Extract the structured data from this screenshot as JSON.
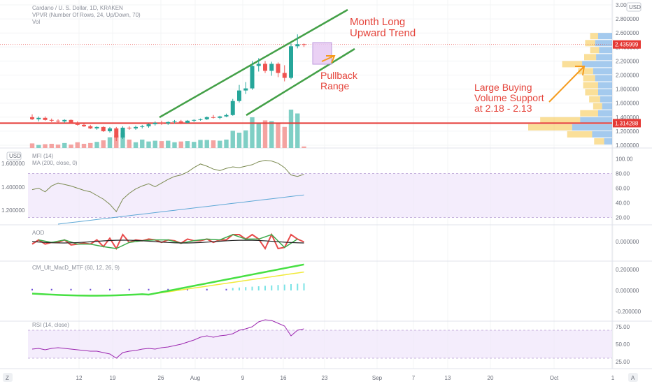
{
  "header": {
    "symbol": "Cardano / U. S. Dollar, 1D, KRAKEN",
    "vpvr": "VPVR (Number Of Rows, 24, Up/Down, 70)",
    "vol": "Vol",
    "currency": "USD"
  },
  "colors": {
    "up": "#26a69a",
    "down": "#ef5350",
    "trend": "#43a047",
    "support": "#e53935",
    "annotation": "#e5443b",
    "mfi": "#7b8a50",
    "ma": "#5ea8d6",
    "band": "#efe6fb",
    "macd": "#47e043",
    "signal": "#f1ea3a",
    "rsi": "#9c27b0"
  },
  "annotations": {
    "trend_l1": "Month Long",
    "trend_l2": "Upward Trend",
    "pullback_l1": "Pullback",
    "pullback_l2": "Range",
    "volume_l1": "Large Buying",
    "volume_l2": "Volume Support",
    "volume_l3": "at 2.18 - 2.13"
  },
  "price_labels": {
    "current": "2.435999",
    "support": "1.314288"
  },
  "x_axis": {
    "labels": [
      "12",
      "19",
      "26",
      "Aug",
      "9",
      "16",
      "23",
      "Sep",
      "7",
      "13",
      "20",
      "Oct",
      "1"
    ],
    "left_badge": "Z",
    "right_badge": "A"
  },
  "panes": {
    "mfi": {
      "title": "MFI (14)",
      "ma": "MA (200, close, 0)",
      "ticks": [
        "100.00",
        "80.00",
        "60.00",
        "40.00",
        "20.00"
      ],
      "left_ticks": [
        "1.600000",
        "1.400000",
        "1.200000"
      ],
      "left_currency": "USD"
    },
    "aod": {
      "title": "AOD",
      "ticks": [
        "0.000000"
      ]
    },
    "macd": {
      "title": "CM_Ult_MacD_MTF (60, 12, 26, 9)",
      "ticks": [
        "0.200000",
        "0.000000",
        "-0.200000"
      ]
    },
    "rsi": {
      "title": "RSI (14, close)",
      "ticks": [
        "75.00",
        "50.00",
        "25.00"
      ]
    }
  },
  "chart_data": {
    "type": "candlestick",
    "y_ticks": [
      "3.000000",
      "2.800000",
      "2.600000",
      "2.400000",
      "2.200000",
      "2.000000",
      "1.800000",
      "1.600000",
      "1.400000",
      "1.200000",
      "1.000000"
    ],
    "ylim": [
      1.0,
      3.0
    ],
    "support_level": 1.314288,
    "current_price": 2.435999,
    "candles": [
      {
        "o": 1.4,
        "h": 1.44,
        "l": 1.36,
        "c": 1.37
      },
      {
        "o": 1.37,
        "h": 1.41,
        "l": 1.34,
        "c": 1.39
      },
      {
        "o": 1.39,
        "h": 1.41,
        "l": 1.35,
        "c": 1.36
      },
      {
        "o": 1.36,
        "h": 1.38,
        "l": 1.33,
        "c": 1.35
      },
      {
        "o": 1.35,
        "h": 1.37,
        "l": 1.32,
        "c": 1.34
      },
      {
        "o": 1.34,
        "h": 1.37,
        "l": 1.32,
        "c": 1.36
      },
      {
        "o": 1.36,
        "h": 1.37,
        "l": 1.31,
        "c": 1.32
      },
      {
        "o": 1.32,
        "h": 1.34,
        "l": 1.28,
        "c": 1.29
      },
      {
        "o": 1.29,
        "h": 1.31,
        "l": 1.26,
        "c": 1.27
      },
      {
        "o": 1.27,
        "h": 1.29,
        "l": 1.23,
        "c": 1.24
      },
      {
        "o": 1.24,
        "h": 1.27,
        "l": 1.22,
        "c": 1.26
      },
      {
        "o": 1.26,
        "h": 1.27,
        "l": 1.19,
        "c": 1.2
      },
      {
        "o": 1.2,
        "h": 1.26,
        "l": 1.18,
        "c": 1.24
      },
      {
        "o": 1.24,
        "h": 1.26,
        "l": 1.06,
        "c": 1.11
      },
      {
        "o": 1.11,
        "h": 1.27,
        "l": 1.09,
        "c": 1.25
      },
      {
        "o": 1.25,
        "h": 1.27,
        "l": 1.22,
        "c": 1.24
      },
      {
        "o": 1.24,
        "h": 1.28,
        "l": 1.22,
        "c": 1.26
      },
      {
        "o": 1.26,
        "h": 1.29,
        "l": 1.24,
        "c": 1.27
      },
      {
        "o": 1.27,
        "h": 1.31,
        "l": 1.25,
        "c": 1.3
      },
      {
        "o": 1.3,
        "h": 1.34,
        "l": 1.28,
        "c": 1.32
      },
      {
        "o": 1.32,
        "h": 1.35,
        "l": 1.29,
        "c": 1.31
      },
      {
        "o": 1.31,
        "h": 1.34,
        "l": 1.29,
        "c": 1.33
      },
      {
        "o": 1.33,
        "h": 1.36,
        "l": 1.31,
        "c": 1.34
      },
      {
        "o": 1.34,
        "h": 1.36,
        "l": 1.3,
        "c": 1.32
      },
      {
        "o": 1.32,
        "h": 1.36,
        "l": 1.31,
        "c": 1.35
      },
      {
        "o": 1.35,
        "h": 1.37,
        "l": 1.33,
        "c": 1.36
      },
      {
        "o": 1.36,
        "h": 1.38,
        "l": 1.35,
        "c": 1.37
      },
      {
        "o": 1.37,
        "h": 1.41,
        "l": 1.36,
        "c": 1.4
      },
      {
        "o": 1.4,
        "h": 1.43,
        "l": 1.38,
        "c": 1.39
      },
      {
        "o": 1.39,
        "h": 1.42,
        "l": 1.37,
        "c": 1.41
      },
      {
        "o": 1.41,
        "h": 1.45,
        "l": 1.4,
        "c": 1.43
      },
      {
        "o": 1.43,
        "h": 1.66,
        "l": 1.42,
        "c": 1.63
      },
      {
        "o": 1.63,
        "h": 1.86,
        "l": 1.61,
        "c": 1.78
      },
      {
        "o": 1.78,
        "h": 1.9,
        "l": 1.73,
        "c": 1.81
      },
      {
        "o": 1.81,
        "h": 2.2,
        "l": 1.79,
        "c": 2.13
      },
      {
        "o": 2.13,
        "h": 2.24,
        "l": 2.05,
        "c": 2.16
      },
      {
        "o": 2.16,
        "h": 2.2,
        "l": 2.03,
        "c": 2.06
      },
      {
        "o": 2.06,
        "h": 2.19,
        "l": 1.99,
        "c": 2.16
      },
      {
        "o": 2.16,
        "h": 2.18,
        "l": 1.97,
        "c": 2.03
      },
      {
        "o": 2.03,
        "h": 2.14,
        "l": 1.91,
        "c": 1.96
      },
      {
        "o": 1.96,
        "h": 2.45,
        "l": 1.94,
        "c": 2.41
      },
      {
        "o": 2.41,
        "h": 2.58,
        "l": 2.38,
        "c": 2.44
      },
      {
        "o": 2.44,
        "h": 2.45,
        "l": 2.4,
        "c": 2.436
      }
    ],
    "volume": [
      12,
      8,
      10,
      11,
      9,
      13,
      9,
      15,
      11,
      13,
      16,
      20,
      28,
      33,
      40,
      22,
      15,
      22,
      17,
      19,
      18,
      19,
      15,
      17,
      18,
      16,
      21,
      21,
      20,
      19,
      22,
      45,
      40,
      46,
      80,
      64,
      72,
      70,
      65,
      55,
      100,
      90,
      4
    ],
    "mfi": [
      58,
      60,
      55,
      63,
      67,
      65,
      63,
      60,
      57,
      55,
      50,
      45,
      38,
      28,
      45,
      53,
      59,
      63,
      66,
      62,
      67,
      72,
      76,
      78,
      82,
      88,
      93,
      90,
      86,
      84,
      87,
      89,
      88,
      90,
      92,
      96,
      98,
      97,
      94,
      88,
      78,
      76,
      79
    ],
    "rsi": [
      43,
      44,
      42,
      44,
      45,
      44,
      43,
      42,
      41,
      40,
      40,
      38,
      36,
      30,
      38,
      40,
      41,
      43,
      44,
      43,
      45,
      46,
      48,
      50,
      53,
      56,
      60,
      62,
      60,
      62,
      63,
      65,
      70,
      72,
      75,
      82,
      85,
      84,
      80,
      76,
      62,
      70,
      72
    ],
    "vpvr": [
      {
        "price": 2.55,
        "up": 8,
        "down": 14
      },
      {
        "price": 2.45,
        "up": 10,
        "down": 17
      },
      {
        "price": 2.35,
        "up": 9,
        "down": 13
      },
      {
        "price": 2.25,
        "up": 12,
        "down": 16
      },
      {
        "price": 2.15,
        "up": 20,
        "down": 30
      },
      {
        "price": 2.05,
        "up": 15,
        "down": 19
      },
      {
        "price": 1.95,
        "up": 12,
        "down": 17
      },
      {
        "price": 1.85,
        "up": 15,
        "down": 14
      },
      {
        "price": 1.75,
        "up": 13,
        "down": 14
      },
      {
        "price": 1.65,
        "up": 11,
        "down": 12
      },
      {
        "price": 1.55,
        "up": 9,
        "down": 10
      },
      {
        "price": 1.45,
        "up": 18,
        "down": 14
      },
      {
        "price": 1.35,
        "up": 40,
        "down": 32
      },
      {
        "price": 1.25,
        "up": 44,
        "down": 40
      },
      {
        "price": 1.15,
        "up": 25,
        "down": 20
      },
      {
        "price": 1.05,
        "up": 10,
        "down": 8
      }
    ]
  }
}
